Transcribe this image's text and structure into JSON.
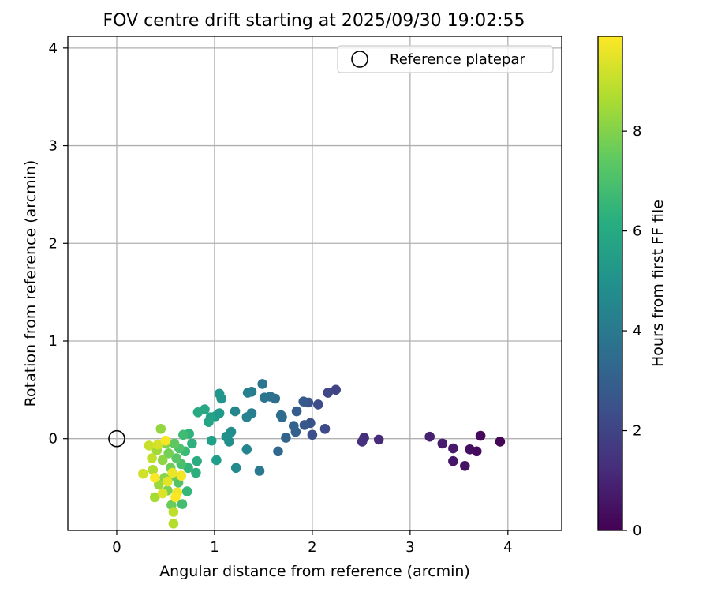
{
  "chart_data": {
    "type": "scatter",
    "title": "FOV centre drift starting at 2025/09/30 19:02:55",
    "xlabel": "Angular distance from reference (arcmin)",
    "ylabel": "Rotation from reference (arcmin)",
    "xlim": [
      -0.5,
      4.55
    ],
    "ylim": [
      -0.94,
      4.12
    ],
    "xticks": [
      0,
      1,
      2,
      3,
      4
    ],
    "yticks": [
      0,
      1,
      2,
      3,
      4
    ],
    "grid": true,
    "legend": {
      "placement": "top-right",
      "label": "Reference platepar"
    },
    "reference": {
      "x": 0,
      "y": 0
    },
    "colorbar": {
      "label": "Hours from first FF file",
      "colormap": "viridis",
      "range": [
        0,
        9.9
      ],
      "ticks": [
        0,
        2,
        4,
        6,
        8
      ]
    },
    "points": [
      {
        "x": 3.92,
        "y": -0.03,
        "c": 0.1
      },
      {
        "x": 3.72,
        "y": 0.03,
        "c": 0.2
      },
      {
        "x": 3.68,
        "y": -0.13,
        "c": 0.3
      },
      {
        "x": 3.61,
        "y": -0.11,
        "c": 0.4
      },
      {
        "x": 3.56,
        "y": -0.28,
        "c": 0.5
      },
      {
        "x": 3.44,
        "y": -0.23,
        "c": 0.6
      },
      {
        "x": 3.44,
        "y": -0.1,
        "c": 0.7
      },
      {
        "x": 3.33,
        "y": -0.05,
        "c": 0.8
      },
      {
        "x": 3.2,
        "y": 0.02,
        "c": 0.9
      },
      {
        "x": 2.68,
        "y": -0.01,
        "c": 1.2
      },
      {
        "x": 2.53,
        "y": 0.01,
        "c": 1.3
      },
      {
        "x": 2.51,
        "y": -0.03,
        "c": 1.4
      },
      {
        "x": 2.24,
        "y": 0.5,
        "c": 2.0
      },
      {
        "x": 2.16,
        "y": 0.47,
        "c": 2.1
      },
      {
        "x": 2.13,
        "y": 0.1,
        "c": 2.2
      },
      {
        "x": 2.06,
        "y": 0.35,
        "c": 2.3
      },
      {
        "x": 2.0,
        "y": 0.04,
        "c": 2.4
      },
      {
        "x": 1.98,
        "y": 0.16,
        "c": 2.5
      },
      {
        "x": 1.96,
        "y": 0.37,
        "c": 2.6
      },
      {
        "x": 1.92,
        "y": 0.14,
        "c": 2.7
      },
      {
        "x": 1.91,
        "y": 0.38,
        "c": 2.8
      },
      {
        "x": 1.84,
        "y": 0.28,
        "c": 2.9
      },
      {
        "x": 1.83,
        "y": 0.07,
        "c": 3.0
      },
      {
        "x": 1.81,
        "y": 0.13,
        "c": 3.1
      },
      {
        "x": 1.73,
        "y": 0.01,
        "c": 3.2
      },
      {
        "x": 1.65,
        "y": -0.13,
        "c": 3.3
      },
      {
        "x": 1.69,
        "y": 0.22,
        "c": 3.4
      },
      {
        "x": 1.68,
        "y": 0.24,
        "c": 3.5
      },
      {
        "x": 1.62,
        "y": 0.41,
        "c": 3.6
      },
      {
        "x": 1.57,
        "y": 0.43,
        "c": 3.7
      },
      {
        "x": 1.51,
        "y": 0.42,
        "c": 3.8
      },
      {
        "x": 1.49,
        "y": 0.56,
        "c": 3.9
      },
      {
        "x": 1.46,
        "y": -0.33,
        "c": 4.0
      },
      {
        "x": 1.38,
        "y": 0.48,
        "c": 4.1
      },
      {
        "x": 1.38,
        "y": 0.26,
        "c": 4.2
      },
      {
        "x": 1.34,
        "y": 0.47,
        "c": 4.3
      },
      {
        "x": 1.33,
        "y": 0.22,
        "c": 4.4
      },
      {
        "x": 1.33,
        "y": -0.11,
        "c": 4.5
      },
      {
        "x": 1.21,
        "y": 0.28,
        "c": 4.6
      },
      {
        "x": 1.22,
        "y": -0.3,
        "c": 4.7
      },
      {
        "x": 1.17,
        "y": 0.07,
        "c": 4.8
      },
      {
        "x": 1.15,
        "y": -0.03,
        "c": 4.9
      },
      {
        "x": 1.12,
        "y": 0.02,
        "c": 5.0
      },
      {
        "x": 1.07,
        "y": 0.41,
        "c": 5.1
      },
      {
        "x": 1.05,
        "y": 0.46,
        "c": 5.2
      },
      {
        "x": 1.05,
        "y": 0.26,
        "c": 5.3
      },
      {
        "x": 1.01,
        "y": 0.23,
        "c": 5.4
      },
      {
        "x": 1.02,
        "y": -0.22,
        "c": 5.5
      },
      {
        "x": 0.97,
        "y": -0.02,
        "c": 5.6
      },
      {
        "x": 0.96,
        "y": 0.22,
        "c": 5.7
      },
      {
        "x": 0.94,
        "y": 0.17,
        "c": 5.8
      },
      {
        "x": 0.9,
        "y": 0.3,
        "c": 5.9
      },
      {
        "x": 0.83,
        "y": 0.27,
        "c": 6.0
      },
      {
        "x": 0.82,
        "y": -0.23,
        "c": 6.1
      },
      {
        "x": 0.81,
        "y": -0.35,
        "c": 6.2
      },
      {
        "x": 0.77,
        "y": -0.05,
        "c": 6.3
      },
      {
        "x": 0.74,
        "y": 0.05,
        "c": 6.4
      },
      {
        "x": 0.73,
        "y": -0.3,
        "c": 6.5
      },
      {
        "x": 0.72,
        "y": -0.54,
        "c": 6.6
      },
      {
        "x": 0.7,
        "y": -0.13,
        "c": 6.7
      },
      {
        "x": 0.68,
        "y": 0.04,
        "c": 6.8
      },
      {
        "x": 0.67,
        "y": -0.67,
        "c": 6.9
      },
      {
        "x": 0.66,
        "y": -0.26,
        "c": 7.0
      },
      {
        "x": 0.64,
        "y": -0.1,
        "c": 7.1
      },
      {
        "x": 0.63,
        "y": -0.45,
        "c": 7.2
      },
      {
        "x": 0.61,
        "y": -0.2,
        "c": 7.3
      },
      {
        "x": 0.59,
        "y": -0.05,
        "c": 7.4
      },
      {
        "x": 0.58,
        "y": -0.38,
        "c": 7.5
      },
      {
        "x": 0.56,
        "y": -0.68,
        "c": 7.6
      },
      {
        "x": 0.55,
        "y": -0.3,
        "c": 7.7
      },
      {
        "x": 0.53,
        "y": -0.15,
        "c": 7.8
      },
      {
        "x": 0.52,
        "y": -0.53,
        "c": 7.9
      },
      {
        "x": 0.5,
        "y": -0.05,
        "c": 8.0
      },
      {
        "x": 0.49,
        "y": -0.4,
        "c": 8.1
      },
      {
        "x": 0.47,
        "y": -0.22,
        "c": 8.2
      },
      {
        "x": 0.45,
        "y": 0.1,
        "c": 8.3
      },
      {
        "x": 0.43,
        "y": -0.47,
        "c": 8.4
      },
      {
        "x": 0.41,
        "y": -0.12,
        "c": 8.5
      },
      {
        "x": 0.39,
        "y": -0.6,
        "c": 8.6
      },
      {
        "x": 0.37,
        "y": -0.32,
        "c": 8.7
      },
      {
        "x": 0.58,
        "y": -0.87,
        "c": 8.8
      },
      {
        "x": 0.58,
        "y": -0.75,
        "c": 8.9
      },
      {
        "x": 0.36,
        "y": -0.2,
        "c": 9.0
      },
      {
        "x": 0.33,
        "y": -0.07,
        "c": 9.1
      },
      {
        "x": 0.27,
        "y": -0.36,
        "c": 9.2
      },
      {
        "x": 0.42,
        "y": -0.06,
        "c": 9.3
      },
      {
        "x": 0.47,
        "y": -0.56,
        "c": 9.4
      },
      {
        "x": 0.52,
        "y": -0.44,
        "c": 9.5
      },
      {
        "x": 0.57,
        "y": -0.35,
        "c": 9.6
      },
      {
        "x": 0.62,
        "y": -0.55,
        "c": 9.7
      },
      {
        "x": 0.66,
        "y": -0.38,
        "c": 9.75
      },
      {
        "x": 0.5,
        "y": -0.02,
        "c": 9.8
      },
      {
        "x": 0.39,
        "y": -0.4,
        "c": 9.85
      },
      {
        "x": 0.6,
        "y": -0.6,
        "c": 9.9
      }
    ]
  }
}
